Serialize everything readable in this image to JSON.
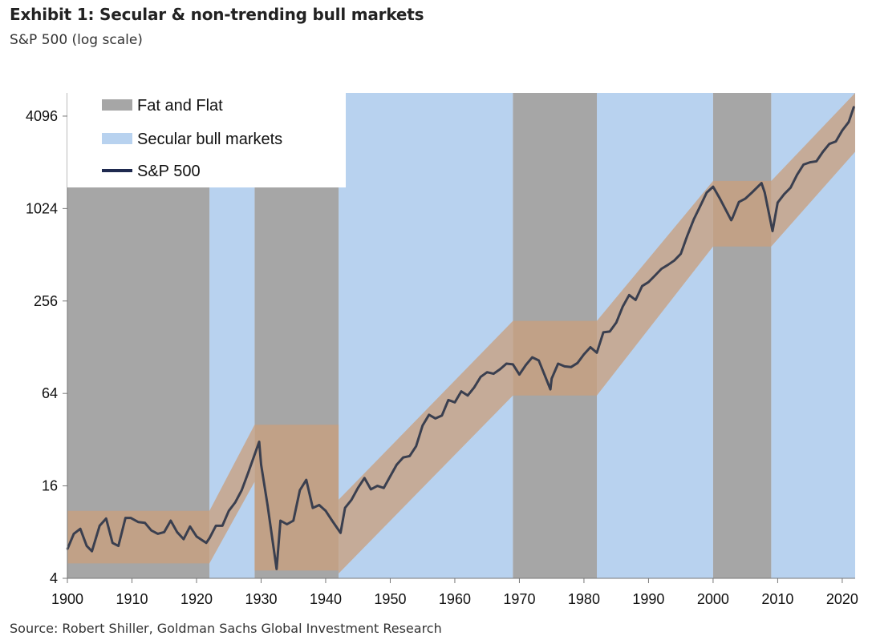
{
  "header": {
    "title": "Exhibit 1: Secular & non-trending bull markets",
    "subtitle": "S&P 500 (log scale)"
  },
  "footer": {
    "source": "Source: Robert Shiller, Goldman Sachs Global Investment Research"
  },
  "colors": {
    "fat_and_flat": "#a6a6a6",
    "secular_bull": "#b8d2ef",
    "sp500_line": "#3a3f4f",
    "band": "#c9a07f"
  },
  "chart_data": {
    "type": "line",
    "log_scale": true,
    "xlim": [
      1900,
      2022
    ],
    "ylim": [
      4,
      5800
    ],
    "x_ticks": [
      1900,
      1910,
      1920,
      1930,
      1940,
      1950,
      1960,
      1970,
      1980,
      1990,
      2000,
      2010,
      2020
    ],
    "y_ticks": [
      4,
      16,
      64,
      256,
      1024,
      4096
    ],
    "legend": {
      "placement": "top-left",
      "items": [
        {
          "label": "Fat and Flat",
          "color": "#a6a6a6",
          "kind": "swatch"
        },
        {
          "label": "Secular bull markets",
          "color": "#b8d2ef",
          "kind": "swatch"
        },
        {
          "label": "S&P 500",
          "color": "#1f2a4f",
          "kind": "line"
        }
      ]
    },
    "fat_and_flat_periods": [
      [
        1900,
        1922
      ],
      [
        1929,
        1942
      ],
      [
        1969,
        1982
      ],
      [
        2000,
        2009
      ]
    ],
    "secular_bull_periods": [
      [
        1922,
        1929
      ],
      [
        1942,
        1969
      ],
      [
        1982,
        2000
      ],
      [
        2009,
        2022
      ]
    ],
    "trend_bands": [
      {
        "x0": 1900,
        "x1": 1922,
        "lo0": 5.0,
        "hi0": 11.0,
        "lo1": 5.0,
        "hi1": 11.0
      },
      {
        "x0": 1922,
        "x1": 1929,
        "lo0": 5.0,
        "hi0": 11.0,
        "lo1": 17.0,
        "hi1": 40.0
      },
      {
        "x0": 1929,
        "x1": 1942,
        "lo0": 4.5,
        "hi0": 40.0,
        "lo1": 4.5,
        "hi1": 40.0
      },
      {
        "x0": 1942,
        "x1": 1969,
        "lo0": 4.3,
        "hi0": 13.0,
        "lo1": 62.0,
        "hi1": 190.0
      },
      {
        "x0": 1969,
        "x1": 1982,
        "lo0": 62.0,
        "hi0": 190.0,
        "lo1": 62.0,
        "hi1": 190.0
      },
      {
        "x0": 1982,
        "x1": 2000,
        "lo0": 62.0,
        "hi0": 190.0,
        "lo1": 580.0,
        "hi1": 1550.0
      },
      {
        "x0": 2000,
        "x1": 2009,
        "lo0": 580.0,
        "hi0": 1550.0,
        "lo1": 580.0,
        "hi1": 1550.0
      },
      {
        "x0": 2009,
        "x1": 2022,
        "lo0": 580.0,
        "hi0": 1550.0,
        "lo1": 2400.0,
        "hi1": 5800.0
      }
    ],
    "series": [
      {
        "name": "S&P 500",
        "x": [
          1900,
          1901,
          1902,
          1903,
          1903.8,
          1905,
          1906,
          1907,
          1907.9,
          1909,
          1909.8,
          1911,
          1912,
          1913,
          1914,
          1915,
          1916,
          1917,
          1918,
          1919,
          1920,
          1921.5,
          1922,
          1923,
          1924,
          1925,
          1926,
          1927,
          1928,
          1929.7,
          1930,
          1931,
          1932.4,
          1933,
          1934,
          1935,
          1936,
          1937,
          1938,
          1939,
          1940,
          1941,
          1942.3,
          1943,
          1944,
          1945,
          1946,
          1947,
          1948,
          1949,
          1950,
          1951,
          1952,
          1953,
          1954,
          1955,
          1956,
          1957,
          1958,
          1959,
          1960,
          1961,
          1962,
          1963,
          1964,
          1965,
          1966,
          1967,
          1968,
          1969,
          1970,
          1971,
          1972,
          1973,
          1974.8,
          1975,
          1976,
          1977,
          1978,
          1979,
          1980,
          1981,
          1982,
          1983,
          1984,
          1985,
          1986,
          1987,
          1988,
          1989,
          1990,
          1991,
          1992,
          1993,
          1994,
          1995,
          1996,
          1997,
          1998,
          1999,
          2000,
          2001,
          2002.8,
          2003,
          2004,
          2005,
          2006,
          2007.5,
          2008,
          2009.2,
          2010,
          2011,
          2012,
          2013,
          2014,
          2015,
          2016,
          2017,
          2018,
          2019,
          2020,
          2021,
          2021.8
        ],
        "values": [
          6.2,
          7.8,
          8.4,
          6.5,
          6.0,
          8.8,
          9.8,
          6.8,
          6.5,
          9.9,
          9.9,
          9.3,
          9.2,
          8.2,
          7.8,
          8.0,
          9.5,
          8.0,
          7.2,
          8.7,
          7.5,
          6.8,
          7.3,
          8.8,
          8.8,
          11.0,
          12.5,
          15.0,
          19.5,
          31.0,
          22.0,
          12.0,
          4.6,
          9.5,
          9.0,
          9.5,
          15.0,
          17.5,
          11.5,
          12.0,
          11.0,
          9.5,
          7.9,
          11.5,
          13.0,
          15.5,
          18.0,
          15.2,
          16.0,
          15.5,
          18.5,
          22.0,
          24.5,
          25.0,
          29.0,
          39.5,
          46.5,
          44.0,
          46.0,
          58.0,
          56.0,
          66.0,
          62.0,
          70.0,
          82.0,
          88.0,
          86.0,
          92.0,
          100.0,
          99.0,
          85.0,
          98.0,
          110.0,
          105.0,
          68.0,
          80.0,
          100.0,
          96.0,
          95.0,
          101.0,
          115.0,
          128.0,
          118.0,
          160.0,
          162.0,
          185.0,
          235.0,
          280.0,
          260.0,
          320.0,
          340.0,
          375.0,
          415.0,
          440.0,
          470.0,
          520.0,
          680.0,
          870.0,
          1060.0,
          1300.0,
          1420.0,
          1200.0,
          860.0,
          890.0,
          1130.0,
          1190.0,
          1300.0,
          1500.0,
          1300.0,
          730.0,
          1120.0,
          1270.0,
          1400.0,
          1700.0,
          1980.0,
          2050.0,
          2080.0,
          2400.0,
          2700.0,
          2800.0,
          3300.0,
          3750.0,
          4700.0
        ]
      }
    ]
  }
}
